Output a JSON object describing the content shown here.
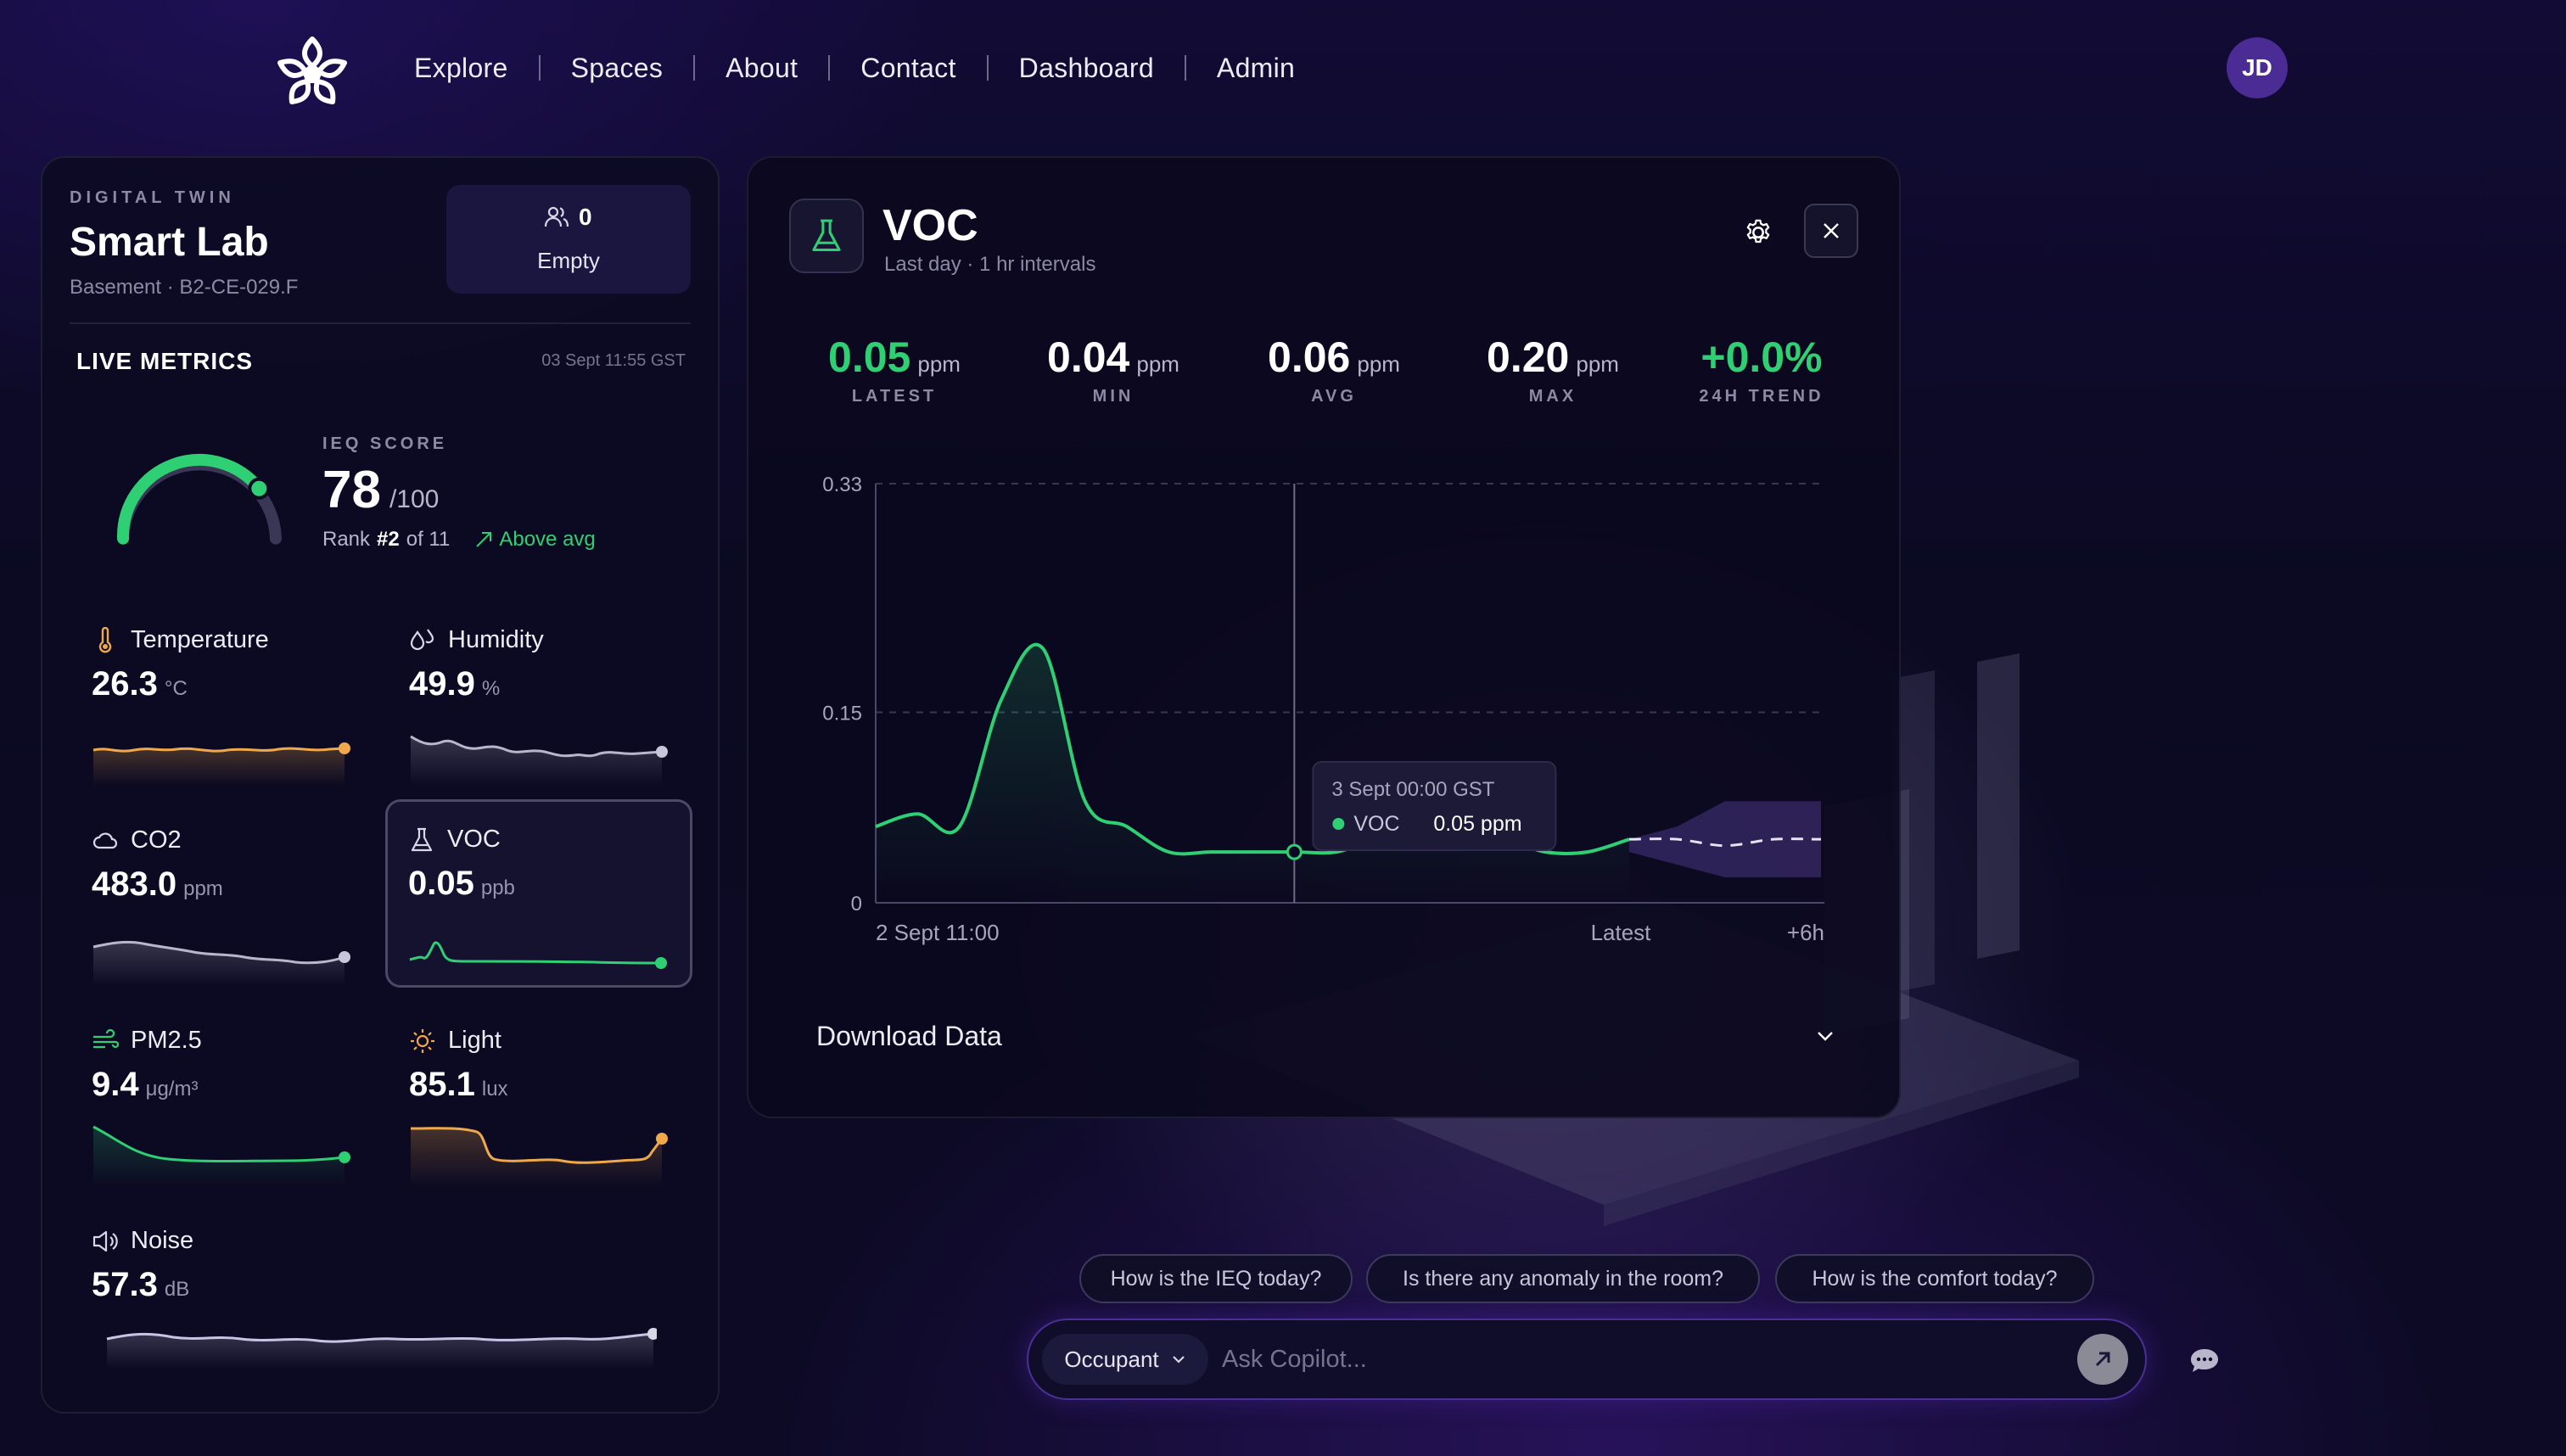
{
  "nav": {
    "items": [
      "Explore",
      "Spaces",
      "About",
      "Contact",
      "Dashboard",
      "Admin"
    ],
    "avatar_initials": "JD"
  },
  "twin": {
    "label": "DIGITAL TWIN",
    "title": "Smart Lab",
    "subtitle": "Basement · B2-CE-029.F",
    "occupancy_count": "0",
    "occupancy_status": "Empty"
  },
  "live_metrics": {
    "title": "LIVE METRICS",
    "timestamp": "03 Sept 11:55 GST",
    "ieq": {
      "label": "IEQ SCORE",
      "score": "78",
      "max": "/100",
      "rank_prefix": "Rank",
      "rank": "#2",
      "rank_suffix": "of 11",
      "comparison": "Above avg",
      "gauge_fraction": 0.78
    },
    "metrics": [
      {
        "name": "Temperature",
        "value": "26.3",
        "unit": "°C",
        "icon": "thermometer-icon",
        "color": "#f0a94a"
      },
      {
        "name": "Humidity",
        "value": "49.9",
        "unit": "%",
        "icon": "droplets-icon",
        "color": "#b9b6cc"
      },
      {
        "name": "CO2",
        "value": "483.0",
        "unit": "ppm",
        "icon": "cloud-icon",
        "color": "#b9b6cc"
      },
      {
        "name": "VOC",
        "value": "0.05",
        "unit": "ppb",
        "icon": "flask-icon",
        "color": "#2fcf73"
      },
      {
        "name": "PM2.5",
        "value": "9.4",
        "unit": "μg/m³",
        "icon": "wind-icon",
        "color": "#2fcf73"
      },
      {
        "name": "Light",
        "value": "85.1",
        "unit": "lux",
        "icon": "sun-icon",
        "color": "#f0a94a"
      },
      {
        "name": "Noise",
        "value": "57.3",
        "unit": "dB",
        "icon": "speaker-icon",
        "color": "#c9c3e6"
      }
    ]
  },
  "detail": {
    "title": "VOC",
    "subtitle": "Last day · 1 hr intervals",
    "stats": [
      {
        "value": "0.05",
        "unit": "ppm",
        "label": "LATEST"
      },
      {
        "value": "0.04",
        "unit": "ppm",
        "label": "MIN"
      },
      {
        "value": "0.06",
        "unit": "ppm",
        "label": "AVG"
      },
      {
        "value": "0.20",
        "unit": "ppm",
        "label": "MAX"
      },
      {
        "value": "+0.0%",
        "unit": "",
        "label": "24H TREND"
      }
    ],
    "download_label": "Download Data"
  },
  "chart_data": {
    "type": "line",
    "title": "",
    "xlabel": "",
    "ylabel": "",
    "y_ticks": [
      "0.33",
      "0.15",
      "0"
    ],
    "x_labels": [
      "2 Sept 11:00",
      "Latest",
      "+6h"
    ],
    "ylim": [
      0,
      0.33
    ],
    "grid": "dashed horizontal",
    "series": [
      {
        "name": "VOC",
        "values": [
          0.06,
          0.07,
          0.06,
          0.16,
          0.2,
          0.08,
          0.06,
          0.04,
          0.04,
          0.04,
          0.04,
          0.04,
          0.05,
          0.05,
          0.05,
          0.05,
          0.04,
          0.04,
          0.05
        ]
      }
    ],
    "forecast": {
      "values": [
        0.05,
        0.05,
        0.045,
        0.05,
        0.05
      ],
      "band_low": [
        0.04,
        0.03,
        0.02,
        0.02,
        0.02
      ],
      "band_high": [
        0.05,
        0.06,
        0.08,
        0.08,
        0.08
      ]
    },
    "tooltip": {
      "time": "3 Sept 00:00 GST",
      "series": "VOC",
      "value": "0.05 ppm"
    }
  },
  "copilot": {
    "suggestions": [
      "How is the IEQ today?",
      "Is there any anomaly in the room?",
      "How is the comfort today?"
    ],
    "role": "Occupant",
    "placeholder": "Ask Copilot..."
  },
  "colors": {
    "accent_green": "#2fcf73",
    "accent_orange": "#f0a94a",
    "accent_purple": "#4a2c94"
  }
}
